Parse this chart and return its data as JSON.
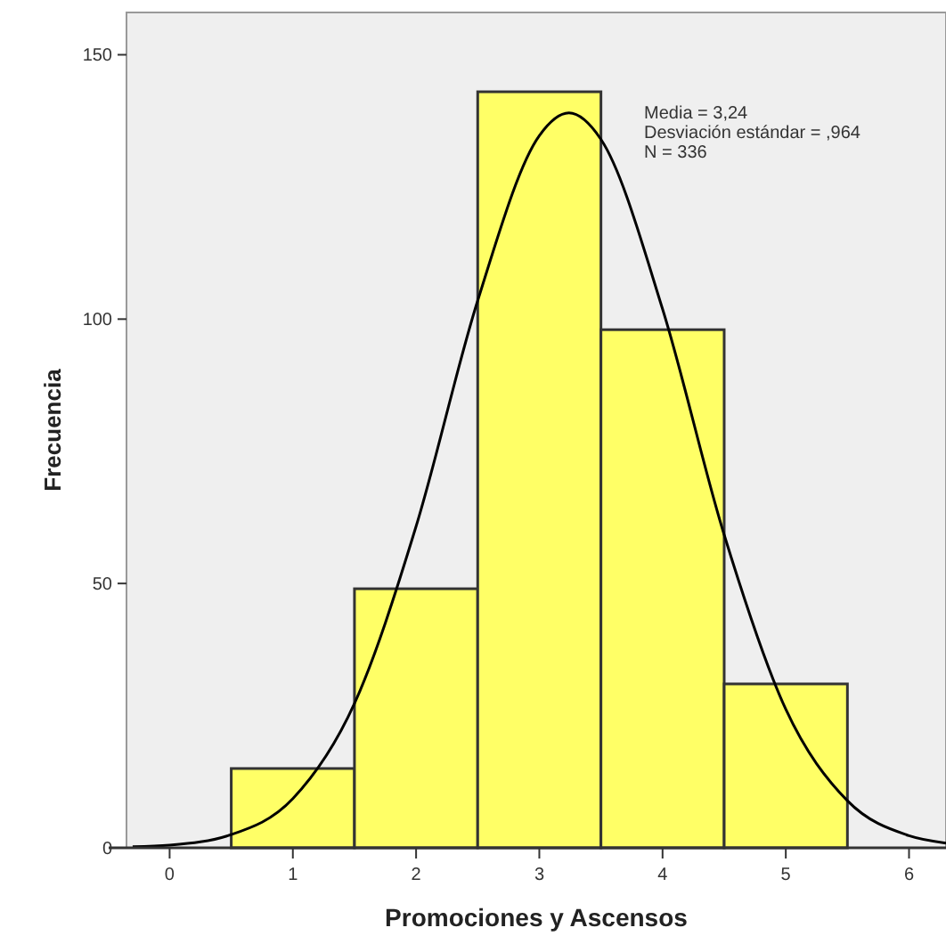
{
  "chart_data": {
    "type": "histogram",
    "xlabel": "Promociones y Ascensos",
    "ylabel": "Frecuencia",
    "bins": [
      0.5,
      1.5,
      2.5,
      3.5,
      4.5,
      5.5
    ],
    "values": [
      15,
      49,
      143,
      98,
      31
    ],
    "color": "#ffff66",
    "series": [
      {
        "type": "line",
        "color": "#000000",
        "x": [
          -0.3,
          0,
          0.5,
          1,
          1.5,
          2,
          2.5,
          3,
          3.24,
          3.5,
          4,
          4.5,
          5,
          5.5,
          6,
          6.3
        ],
        "values": [
          0.2,
          0.5,
          2.5,
          9.3,
          27.3,
          60.8,
          103.5,
          134.7,
          139,
          134,
          101.9,
          59.2,
          26.2,
          8.9,
          2.3,
          0.9
        ]
      }
    ],
    "xlim": [
      -0.35,
      6.3
    ],
    "xticks": [
      0,
      1,
      2,
      3,
      4,
      5,
      6
    ],
    "ylim": [
      0,
      158
    ],
    "yticks": [
      0,
      50,
      100,
      150
    ],
    "grid": false,
    "annotations": [
      "Media = 3,24",
      "Desviación estándar = ,964",
      "N = 336"
    ]
  }
}
